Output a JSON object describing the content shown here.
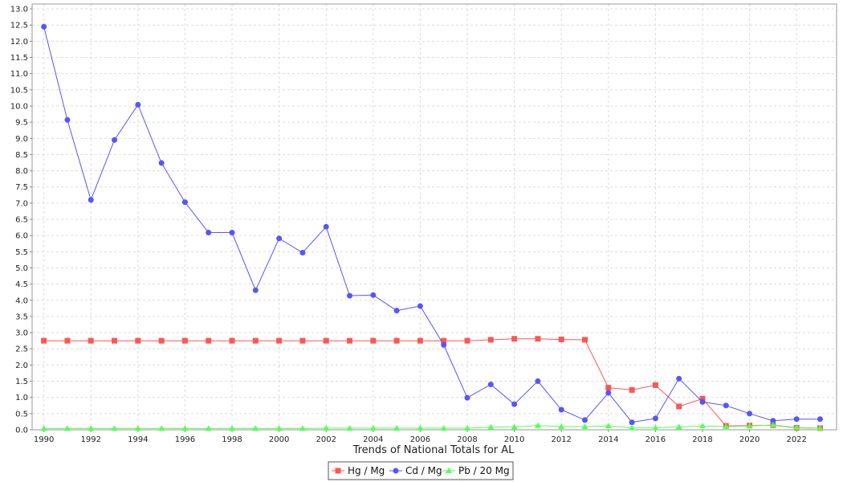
{
  "chart_data": {
    "type": "line",
    "title": "",
    "xlabel": "Trends of National Totals for AL",
    "ylabel": "",
    "x": [
      1990,
      1991,
      1992,
      1993,
      1994,
      1995,
      1996,
      1997,
      1998,
      1999,
      2000,
      2001,
      2002,
      2003,
      2004,
      2005,
      2006,
      2007,
      2008,
      2009,
      2010,
      2011,
      2012,
      2013,
      2014,
      2015,
      2016,
      2017,
      2018,
      2019,
      2020,
      2021,
      2022,
      2023
    ],
    "xticks": [
      1990,
      1992,
      1994,
      1996,
      1998,
      2000,
      2002,
      2004,
      2006,
      2008,
      2010,
      2012,
      2014,
      2016,
      2018,
      2020,
      2022
    ],
    "xlim": [
      1989.5,
      2023.7
    ],
    "ylim": [
      0,
      13.15
    ],
    "yticks": [
      "0.0",
      "0.5",
      "1.0",
      "1.5",
      "2.0",
      "2.5",
      "3.0",
      "3.5",
      "4.0",
      "4.5",
      "5.0",
      "5.5",
      "6.0",
      "6.5",
      "7.0",
      "7.5",
      "8.0",
      "8.5",
      "9.0",
      "9.5",
      "10.0",
      "10.5",
      "11.0",
      "11.5",
      "12.0",
      "12.5",
      "13.0"
    ],
    "grid": true,
    "legend_position": "bottom",
    "series": [
      {
        "name": "Hg / Mg",
        "color": "#ff5555",
        "marker": "square",
        "values": [
          2.75,
          2.75,
          2.75,
          2.75,
          2.75,
          2.75,
          2.75,
          2.75,
          2.75,
          2.75,
          2.75,
          2.75,
          2.75,
          2.75,
          2.75,
          2.75,
          2.75,
          2.75,
          2.75,
          2.78,
          2.81,
          2.81,
          2.79,
          2.78,
          1.3,
          1.23,
          1.38,
          0.72,
          0.96,
          0.12,
          0.13,
          0.14,
          0.06,
          0.05
        ]
      },
      {
        "name": "Cd / Mg",
        "color": "#5555ff",
        "marker": "circle",
        "values": [
          12.45,
          9.57,
          7.1,
          8.95,
          10.04,
          8.24,
          7.03,
          6.09,
          6.09,
          4.31,
          5.91,
          5.47,
          6.27,
          4.14,
          4.16,
          3.68,
          3.82,
          2.62,
          0.99,
          1.4,
          0.79,
          1.5,
          0.62,
          0.3,
          1.14,
          0.23,
          0.35,
          1.58,
          0.86,
          0.75,
          0.5,
          0.28,
          0.33,
          0.33
        ]
      },
      {
        "name": "Pb / 20 Mg",
        "color": "#55ff55",
        "marker": "triangle",
        "values": [
          0.04,
          0.04,
          0.04,
          0.04,
          0.04,
          0.04,
          0.04,
          0.04,
          0.04,
          0.04,
          0.04,
          0.04,
          0.05,
          0.05,
          0.05,
          0.05,
          0.05,
          0.05,
          0.05,
          0.08,
          0.09,
          0.13,
          0.1,
          0.1,
          0.12,
          0.06,
          0.06,
          0.09,
          0.12,
          0.1,
          0.12,
          0.15,
          0.07,
          0.05
        ]
      }
    ]
  }
}
